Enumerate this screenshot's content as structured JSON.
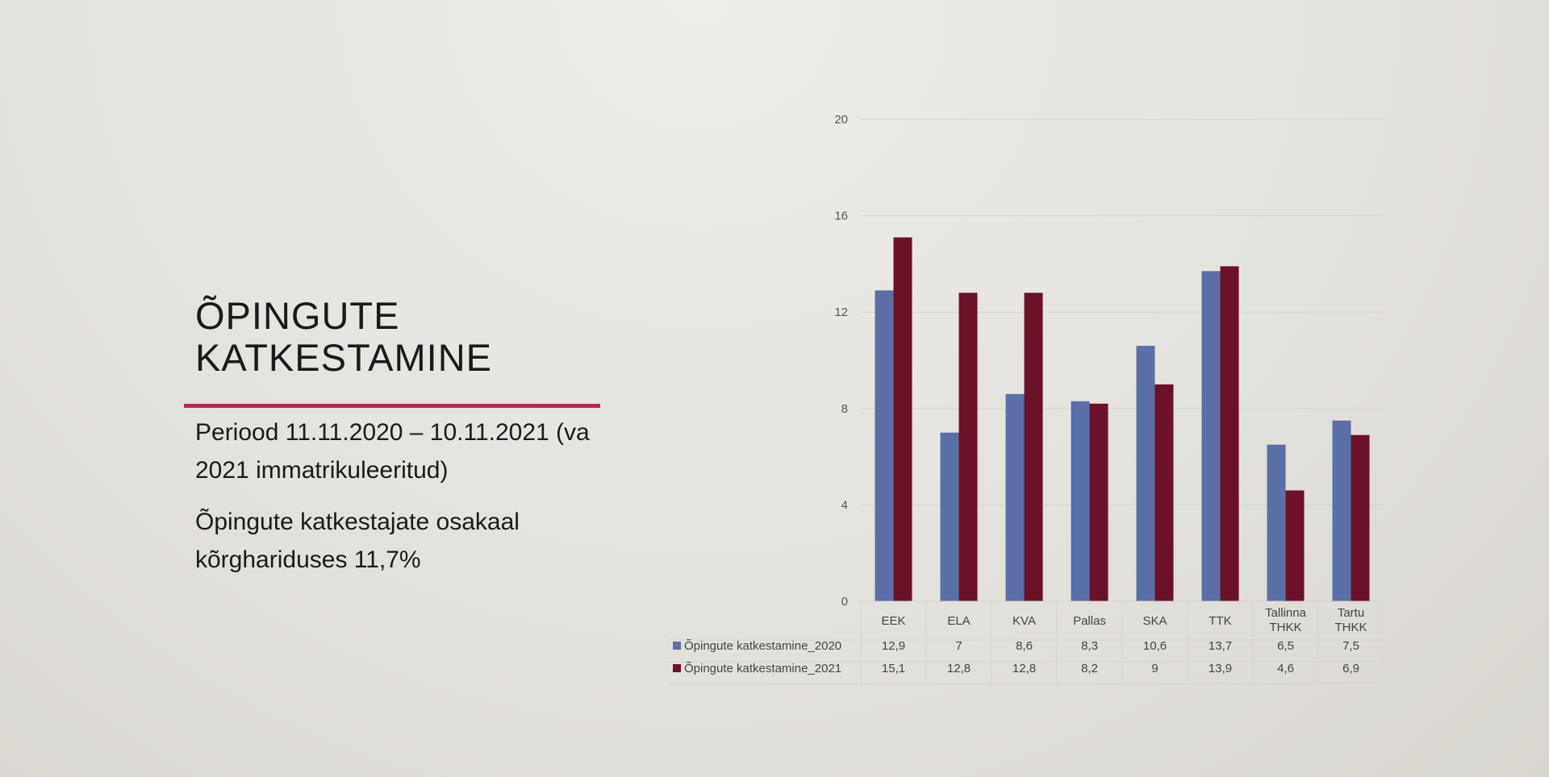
{
  "slide": {
    "title_line1": "ÕPINGUTE",
    "title_line2": "KATKESTAMINE",
    "paragraph1": "Periood 11.11.2020 – 10.11.2021 (va 2021 immatrikuleeritud)",
    "paragraph2": "Õpingute katkestajate osakaal kõrghariduses 11,7%"
  },
  "colors": {
    "accent_rule": "#b8284a",
    "series_2020": "#5a6fa8",
    "series_2021": "#6b1228"
  },
  "chart_data": {
    "type": "bar",
    "categories": [
      "EEK",
      "ELA",
      "KVA",
      "Pallas",
      "SKA",
      "TTK",
      "Tallinna THKK",
      "Tartu THKK"
    ],
    "category_lines": [
      [
        "EEK"
      ],
      [
        "ELA"
      ],
      [
        "KVA"
      ],
      [
        "Pallas"
      ],
      [
        "SKA"
      ],
      [
        "TTK"
      ],
      [
        "Tallinna",
        "THKK"
      ],
      [
        "Tartu",
        "THKK"
      ]
    ],
    "series": [
      {
        "name": "Õpingute katkestamine_2020",
        "values": [
          12.9,
          7,
          8.6,
          8.3,
          10.6,
          13.7,
          6.5,
          7.5
        ],
        "labels": [
          "12,9",
          "7",
          "8,6",
          "8,3",
          "10,6",
          "13,7",
          "6,5",
          "7,5"
        ]
      },
      {
        "name": "Õpingute katkestamine_2021",
        "values": [
          15.1,
          12.8,
          12.8,
          8.2,
          9,
          13.9,
          4.6,
          6.9
        ],
        "labels": [
          "15,1",
          "12,8",
          "12,8",
          "8,2",
          "9",
          "13,9",
          "4,6",
          "6,9"
        ]
      }
    ],
    "yticks": [
      0,
      4,
      8,
      12,
      16,
      20
    ],
    "ylim": [
      0,
      20
    ],
    "grid": true,
    "legend": "data-table"
  }
}
